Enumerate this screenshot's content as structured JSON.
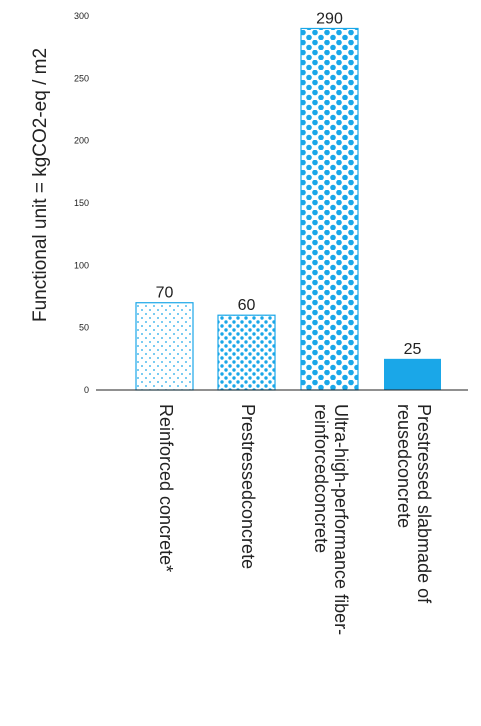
{
  "chart_data": {
    "type": "bar",
    "title": "",
    "xlabel": "",
    "ylabel": "Functional unit = kgCO2-eq / m2",
    "ylim": [
      0,
      300
    ],
    "yticks": [
      0,
      50,
      100,
      150,
      200,
      250,
      300
    ],
    "categories": [
      [
        "Reinforced concrete*"
      ],
      [
        "Prestressedconcrete"
      ],
      [
        "Ultra-high-performance fiber-",
        "reinforcedconcrete"
      ],
      [
        "Prestressed slabmade of",
        "reusedconcrete"
      ]
    ],
    "values": [
      70,
      60,
      290,
      25
    ],
    "bar_styles": [
      "small-dots",
      "medium-dots",
      "large-dots",
      "solid"
    ],
    "colors": {
      "bar": "#1aa7e8",
      "axis": "#222222"
    },
    "grid": false
  }
}
